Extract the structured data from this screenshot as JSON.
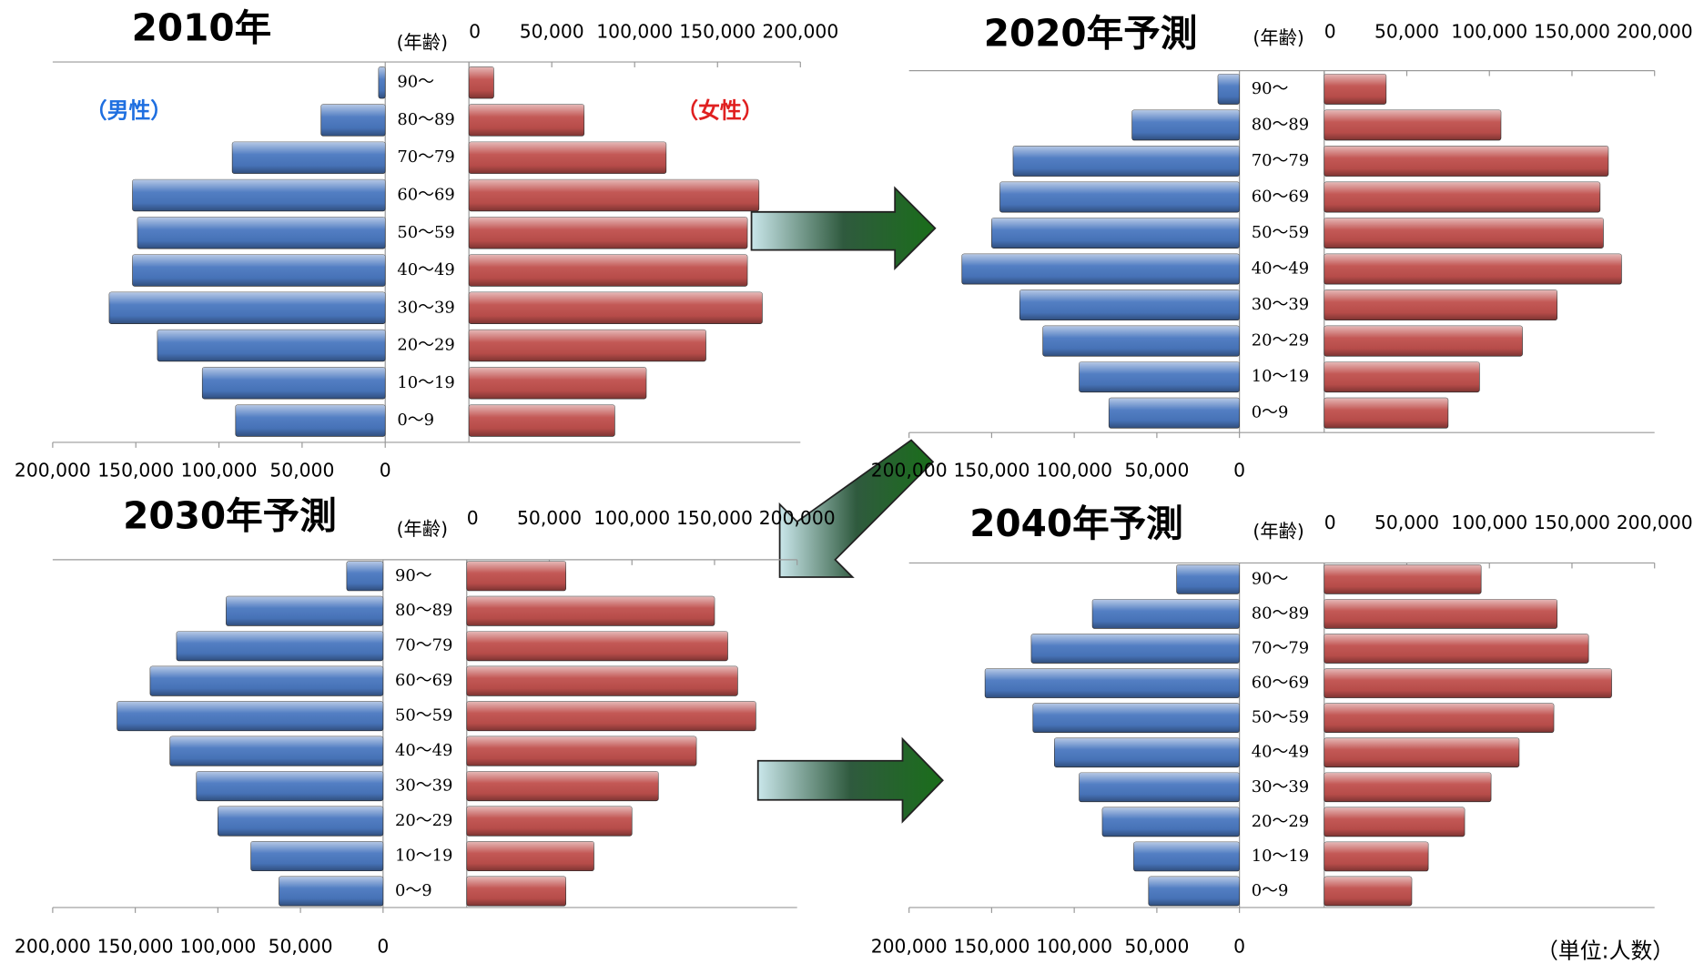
{
  "chart_data": [
    {
      "type": "pyramid",
      "title": "2010年",
      "age_label": "(年齢)",
      "categories": [
        "90〜",
        "80〜89",
        "70〜79",
        "60〜69",
        "50〜59",
        "40〜49",
        "30〜39",
        "20〜29",
        "10〜19",
        "0〜9"
      ],
      "series": [
        {
          "name": "（男性）",
          "color": "#4a78c0",
          "side": "left",
          "values": [
            4000,
            38600,
            92000,
            152000,
            149000,
            152000,
            166000,
            137000,
            110000,
            90000
          ]
        },
        {
          "name": "（女性）",
          "color": "#c0504d",
          "side": "right",
          "values": [
            15000,
            69500,
            119000,
            175000,
            168000,
            168000,
            177000,
            143000,
            107000,
            88000
          ]
        }
      ],
      "xlim": [
        0,
        200000
      ],
      "xticks": [
        0,
        {
          "value": 50000,
          "label": "50,000"
        },
        {
          "value": 100000,
          "label": "100,000"
        },
        {
          "value": 150000,
          "label": "150,000"
        },
        {
          "value": 200000,
          "label": "200,000"
        }
      ]
    },
    {
      "type": "pyramid",
      "title": "2020年予測",
      "age_label": "(年齢)",
      "categories": [
        "90〜",
        "80〜89",
        "70〜79",
        "60〜69",
        "50〜59",
        "40〜49",
        "30〜39",
        "20〜29",
        "10〜19",
        "0〜9"
      ],
      "series": [
        {
          "color": "#4a78c0",
          "side": "left",
          "values": [
            13000,
            65000,
            137000,
            145000,
            150000,
            168000,
            133000,
            119000,
            97000,
            79000
          ]
        },
        {
          "color": "#c0504d",
          "side": "right",
          "values": [
            37500,
            107000,
            172000,
            167000,
            169000,
            180000,
            141000,
            120000,
            94000,
            75000
          ]
        }
      ],
      "xlim": [
        0,
        200000
      ],
      "xticks": [
        0,
        {
          "value": 50000,
          "label": "50,000"
        },
        {
          "value": 100000,
          "label": "100,000"
        },
        {
          "value": 150000,
          "label": "150,000"
        },
        {
          "value": 200000,
          "label": "200,000"
        }
      ]
    },
    {
      "type": "pyramid",
      "title": "2030年予測",
      "age_label": "(年齢)",
      "categories": [
        "90〜",
        "80〜89",
        "70〜79",
        "60〜69",
        "50〜59",
        "40〜49",
        "30〜39",
        "20〜29",
        "10〜19",
        "0〜9"
      ],
      "series": [
        {
          "color": "#4a78c0",
          "side": "left",
          "values": [
            22000,
            95000,
            125000,
            141000,
            161000,
            129000,
            113000,
            100000,
            80000,
            63000
          ]
        },
        {
          "color": "#c0504d",
          "side": "right",
          "values": [
            60000,
            150000,
            158000,
            164000,
            175000,
            139000,
            116000,
            100000,
            77000,
            60000
          ]
        }
      ],
      "xlim": [
        0,
        200000
      ],
      "xticks": [
        0,
        {
          "value": 50000,
          "label": "50,000"
        },
        {
          "value": 100000,
          "label": "100,000"
        },
        {
          "value": 150000,
          "label": "150,000"
        },
        {
          "value": 200000,
          "label": "200,000"
        }
      ]
    },
    {
      "type": "pyramid",
      "title": "2040年予測",
      "age_label": "(年齢)",
      "categories": [
        "90〜",
        "80〜89",
        "70〜79",
        "60〜69",
        "50〜59",
        "40〜49",
        "30〜39",
        "20〜29",
        "10〜19",
        "0〜9"
      ],
      "series": [
        {
          "color": "#4a78c0",
          "side": "left",
          "values": [
            38000,
            89000,
            126000,
            154000,
            125000,
            112000,
            97000,
            83000,
            64000,
            55000
          ]
        },
        {
          "color": "#c0504d",
          "side": "right",
          "values": [
            95000,
            141000,
            160000,
            174000,
            139000,
            118000,
            101000,
            85000,
            63000,
            53000
          ]
        }
      ],
      "xlim": [
        0,
        200000
      ],
      "xticks": [
        0,
        {
          "value": 50000,
          "label": "50,000"
        },
        {
          "value": 100000,
          "label": "100,000"
        },
        {
          "value": 150000,
          "label": "150,000"
        },
        {
          "value": 200000,
          "label": "200,000"
        }
      ]
    }
  ],
  "unit_label": "（単位:人数）"
}
